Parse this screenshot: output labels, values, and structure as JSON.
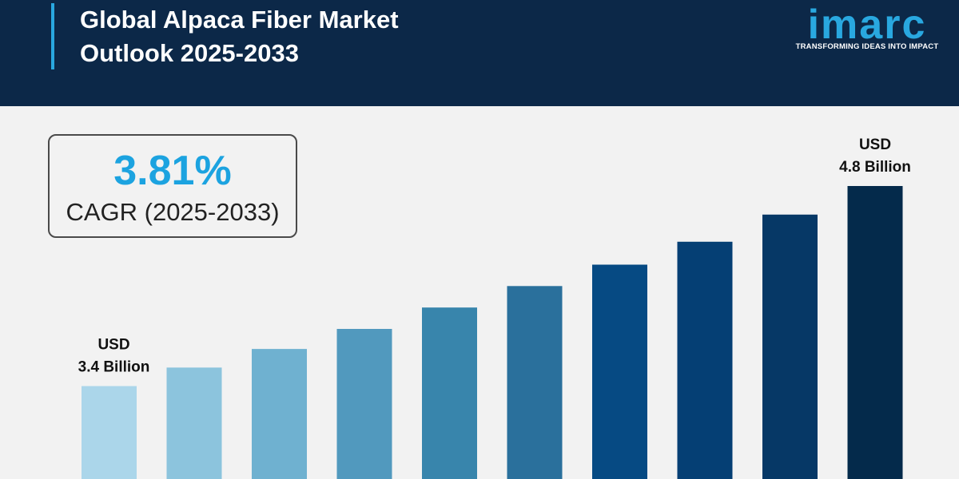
{
  "header": {
    "title_line1": "Global Alpaca Fiber Market",
    "title_line2": "Outlook 2025-2033",
    "logo_text": "imarc",
    "tagline": "TRANSFORMING IDEAS INTO IMPACT"
  },
  "cagr": {
    "value": "3.81%",
    "label": "CAGR (2025-2033)"
  },
  "colors": {
    "header_bg": "#0c2848",
    "accent": "#29a8e0",
    "cagr_value": "#1ca3e0"
  },
  "chart_data": {
    "type": "bar",
    "title": "Global Alpaca Fiber Market Outlook 2025-2033",
    "unit": "USD Billion",
    "values": [
      3.4,
      3.53,
      3.66,
      3.8,
      3.95,
      4.1,
      4.25,
      4.41,
      4.6,
      4.8
    ],
    "ylim": [
      0,
      5.0
    ],
    "grid": false,
    "legend": "none",
    "bar_colors": [
      "#abd6ea",
      "#8cc4dd",
      "#6fb1d0",
      "#5199be",
      "#3885ac",
      "#2a709c",
      "#064a83",
      "#053f74",
      "#063866",
      "#042a4b"
    ],
    "data_labels": [
      {
        "index": 0,
        "line1": "USD",
        "line2": "3.4 Billion"
      },
      {
        "index": 9,
        "line1": "USD",
        "line2": "4.8 Billion"
      }
    ]
  }
}
